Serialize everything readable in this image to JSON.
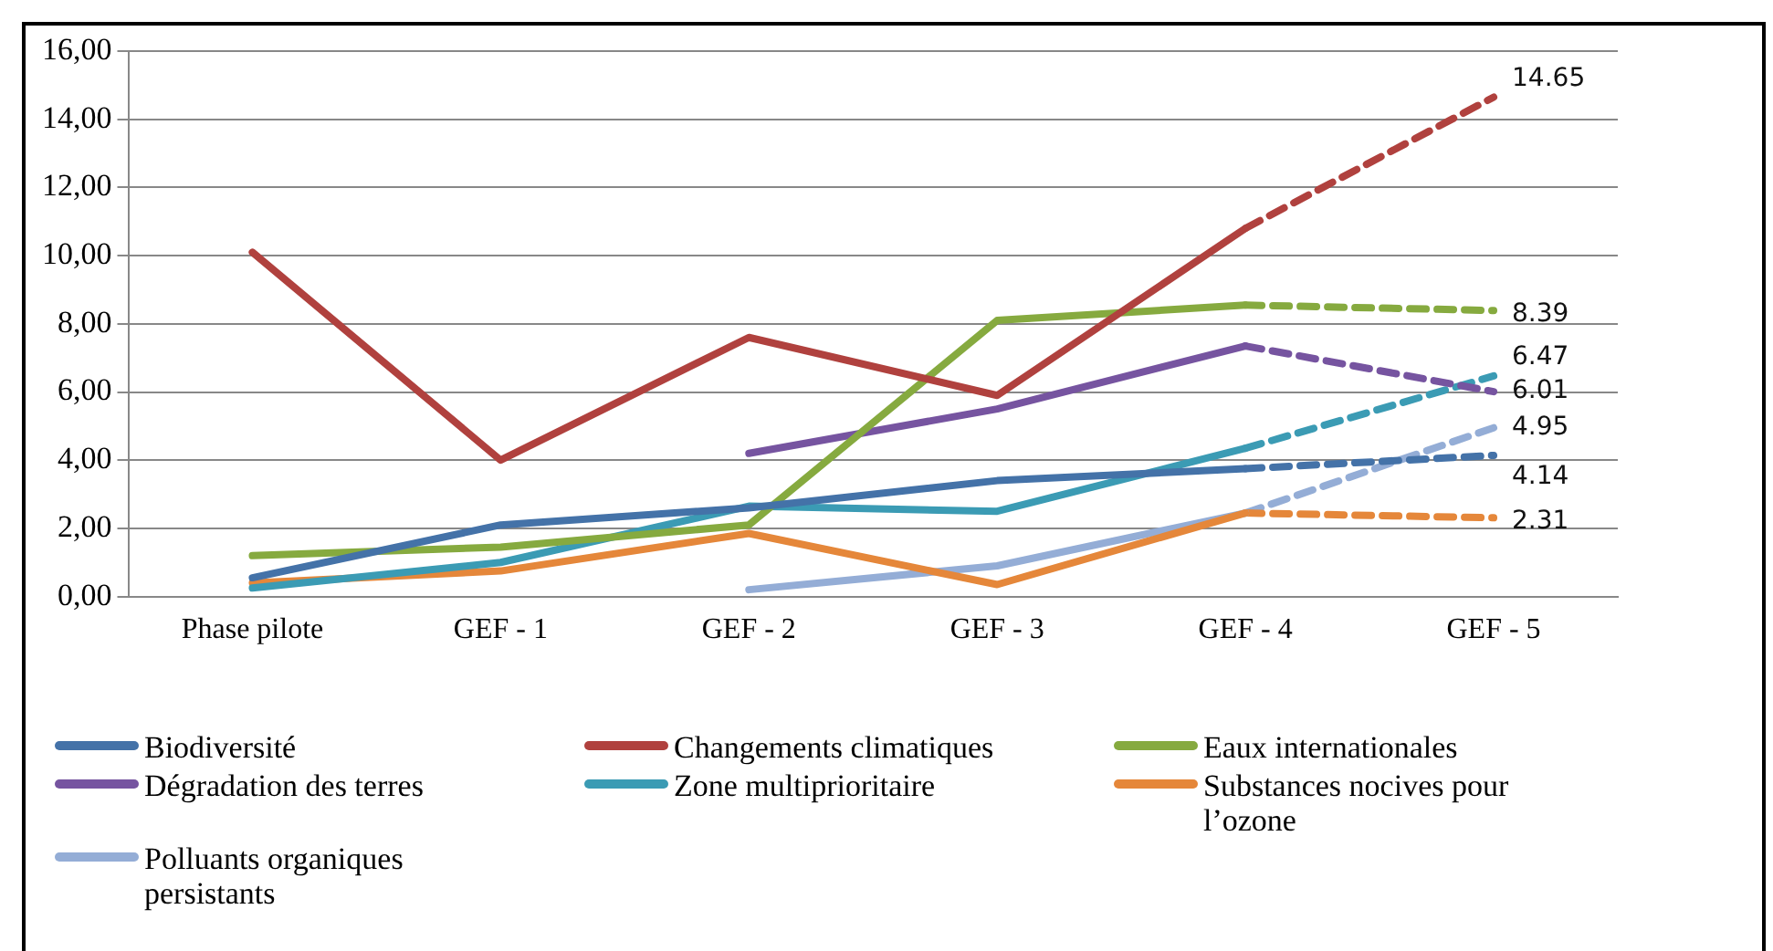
{
  "chart_data": {
    "type": "line",
    "categories": [
      "Phase pilote",
      "GEF - 1",
      "GEF - 2",
      "GEF - 3",
      "GEF - 4",
      "GEF - 5"
    ],
    "ylim": [
      0,
      16
    ],
    "yticks": [
      {
        "value": 0,
        "label": "0,00"
      },
      {
        "value": 2,
        "label": "2,00"
      },
      {
        "value": 4,
        "label": "4,00"
      },
      {
        "value": 6,
        "label": "6,00"
      },
      {
        "value": 8,
        "label": "8,00"
      },
      {
        "value": 10,
        "label": "10,00"
      },
      {
        "value": 12,
        "label": "12,00"
      },
      {
        "value": 14,
        "label": "14,00"
      },
      {
        "value": 16,
        "label": "16,00"
      }
    ],
    "grid": "y",
    "legend": "bottom",
    "marker": "none",
    "series": [
      {
        "name": "Biodiversité",
        "color": "#4472a8",
        "line_style": "solid",
        "values": [
          0.55,
          2.1,
          2.6,
          3.4,
          3.75,
          null
        ]
      },
      {
        "name": "Changements climatiques",
        "color": "#b0413e",
        "line_style": "solid",
        "values": [
          10.1,
          4.0,
          7.6,
          5.9,
          10.8,
          null
        ]
      },
      {
        "name": "Eaux internationales",
        "color": "#86aa3f",
        "line_style": "solid",
        "values": [
          1.2,
          1.45,
          2.1,
          8.1,
          8.55,
          null
        ]
      },
      {
        "name": "Dégradation des terres",
        "color": "#7654a0",
        "line_style": "solid",
        "values": [
          null,
          null,
          4.2,
          5.5,
          7.35,
          null
        ]
      },
      {
        "name": "Zone multiprioritaire",
        "color": "#3b9bb4",
        "line_style": "solid",
        "values": [
          0.25,
          1.0,
          2.65,
          2.5,
          4.35,
          null
        ]
      },
      {
        "name": "Substances nocives pour l’ozone",
        "color": "#e5873a",
        "line_style": "solid",
        "values": [
          0.4,
          0.75,
          1.85,
          0.35,
          2.45,
          null
        ]
      },
      {
        "name": "Polluants organiques persistants",
        "color": "#94add6",
        "line_style": "solid",
        "values": [
          null,
          null,
          0.2,
          0.9,
          2.45,
          null
        ]
      },
      {
        "color": "#4472a8",
        "line_style": "dashed",
        "values": [
          null,
          null,
          null,
          null,
          3.75,
          4.14
        ],
        "value_labels": [
          null,
          null,
          null,
          null,
          null,
          "4.14"
        ]
      },
      {
        "color": "#b0413e",
        "line_style": "dashed",
        "values": [
          null,
          null,
          null,
          null,
          10.8,
          14.65
        ],
        "value_labels": [
          null,
          null,
          null,
          null,
          null,
          "14.65"
        ]
      },
      {
        "color": "#86aa3f",
        "line_style": "dashed",
        "values": [
          null,
          null,
          null,
          null,
          8.55,
          8.39
        ],
        "value_labels": [
          null,
          null,
          null,
          null,
          null,
          "8.39"
        ]
      },
      {
        "color": "#7654a0",
        "line_style": "dashed",
        "values": [
          null,
          null,
          null,
          null,
          7.35,
          6.01
        ],
        "value_labels": [
          null,
          null,
          null,
          null,
          null,
          "6.01"
        ]
      },
      {
        "color": "#3b9bb4",
        "line_style": "dashed",
        "values": [
          null,
          null,
          null,
          null,
          4.35,
          6.47
        ],
        "value_labels": [
          null,
          null,
          null,
          null,
          null,
          "6.47"
        ]
      },
      {
        "color": "#e5873a",
        "line_style": "dashed",
        "values": [
          null,
          null,
          null,
          null,
          2.45,
          2.31
        ],
        "value_labels": [
          null,
          null,
          null,
          null,
          null,
          "2.31"
        ]
      },
      {
        "color": "#94add6",
        "line_style": "dashed",
        "values": [
          null,
          null,
          null,
          null,
          2.45,
          4.95
        ],
        "value_labels": [
          null,
          null,
          null,
          null,
          null,
          "4.95"
        ]
      }
    ]
  }
}
